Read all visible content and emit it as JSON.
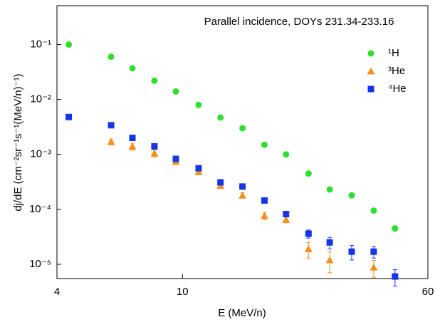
{
  "chart_data": {
    "type": "scatter",
    "annotation": "Parallel incidence, DOYs 231.34-233.16",
    "xlabel": "E (MeV/n)",
    "ylabel": "dj/dE (cm⁻²sr⁻¹s⁻¹(MeV/n)⁻¹)",
    "xscale": "log",
    "yscale": "log",
    "xlim": [
      4,
      60
    ],
    "ylim": [
      5.5e-06,
      0.51
    ],
    "xticks": [
      4,
      10,
      60
    ],
    "yticks": [
      {
        "value": 1e-05,
        "label": "10⁻⁵"
      },
      {
        "value": 0.0001,
        "label": "10⁻⁴"
      },
      {
        "value": 0.001,
        "label": "10⁻³"
      },
      {
        "value": 0.01,
        "label": "10⁻²"
      },
      {
        "value": 0.1,
        "label": "10⁻¹"
      }
    ],
    "legend": "upper right",
    "series": [
      {
        "name": "¹H",
        "color": "#2ee02e",
        "marker": "circle",
        "x": [
          4.36,
          5.94,
          6.94,
          8.15,
          9.53,
          11.25,
          13.2,
          15.5,
          18.2,
          21.3,
          25.1,
          29.3,
          34.4,
          40.4,
          47.2
        ],
        "values": [
          0.1,
          0.06,
          0.037,
          0.022,
          0.014,
          0.008,
          0.0047,
          0.003,
          0.0015,
          0.001,
          0.00045,
          0.00023,
          0.00018,
          9.5e-05,
          4.5e-05
        ],
        "errors": [
          0,
          0,
          0,
          0,
          0,
          0,
          0,
          0,
          0,
          0,
          0,
          0,
          0,
          0,
          5e-06
        ]
      },
      {
        "name": "³He",
        "color": "#f39020",
        "marker": "triangle",
        "x": [
          5.94,
          6.94,
          8.15,
          9.53,
          11.25,
          13.2,
          15.5,
          18.2,
          21.3,
          25.1,
          29.3,
          40.4
        ],
        "values": [
          0.0017,
          0.0014,
          0.00105,
          0.00074,
          0.00048,
          0.00027,
          0.00018,
          7.7e-05,
          6.5e-05,
          1.9e-05,
          1.2e-05,
          8.8e-06
        ],
        "errors": [
          0.0002,
          0.0002,
          0.00015,
          6e-05,
          5e-05,
          2e-05,
          2e-05,
          1.2e-05,
          8e-06,
          6e-06,
          5e-06,
          3e-06
        ]
      },
      {
        "name": "⁴He",
        "color": "#1636e6",
        "marker": "square",
        "x": [
          4.36,
          5.94,
          6.94,
          8.15,
          9.53,
          11.25,
          13.2,
          15.5,
          18.2,
          21.3,
          25.1,
          29.3,
          34.4,
          40.4,
          47.2
        ],
        "values": [
          0.0048,
          0.0034,
          0.002,
          0.0014,
          0.00083,
          0.00056,
          0.00031,
          0.00026,
          0.000145,
          8.2e-05,
          3.6e-05,
          2.5e-05,
          1.7e-05,
          1.7e-05,
          6e-06
        ],
        "errors": [
          0,
          0,
          0,
          0,
          0,
          0,
          0,
          0,
          1e-05,
          6e-06,
          6e-06,
          6e-06,
          5e-06,
          4e-06,
          2e-06
        ]
      }
    ]
  }
}
